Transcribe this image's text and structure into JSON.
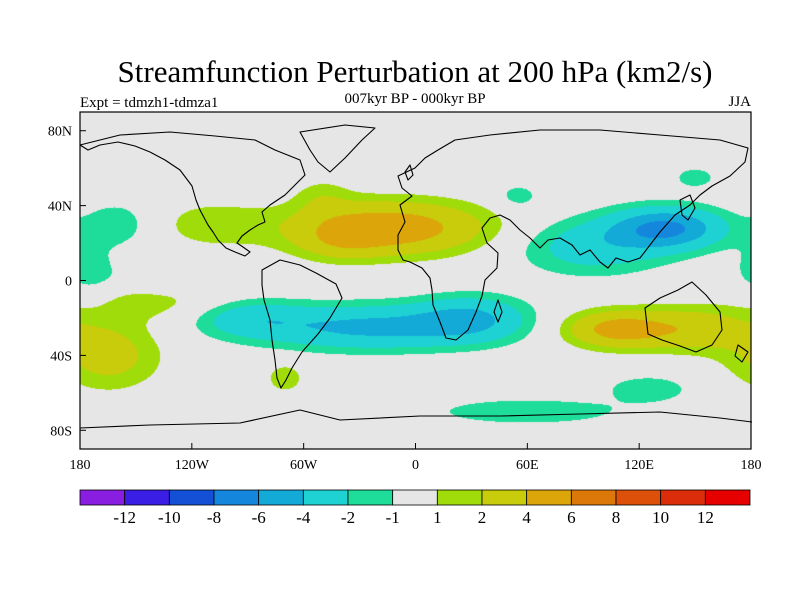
{
  "chart_data": {
    "type": "heatmap",
    "title": "Streamfunction Perturbation at 200 hPa (km2/s)",
    "left_label": "Expt = tdmzh1-tdmza1",
    "center_label": "007kyr BP - 000kyr BP",
    "right_label": "JJA",
    "xlim": [
      -180,
      180
    ],
    "ylim": [
      -90,
      90
    ],
    "x_ticks": [
      {
        "value": -180,
        "label": "180"
      },
      {
        "value": -120,
        "label": "120W"
      },
      {
        "value": -60,
        "label": "60W"
      },
      {
        "value": 0,
        "label": "0"
      },
      {
        "value": 60,
        "label": "60E"
      },
      {
        "value": 120,
        "label": "120E"
      },
      {
        "value": 180,
        "label": "180"
      }
    ],
    "y_ticks": [
      {
        "value": 80,
        "label": "80N"
      },
      {
        "value": 40,
        "label": "40N"
      },
      {
        "value": 0,
        "label": "0"
      },
      {
        "value": -40,
        "label": "40S"
      },
      {
        "value": -80,
        "label": "80S"
      }
    ],
    "colorbar": {
      "levels": [
        -12,
        -10,
        -8,
        -6,
        -4,
        -2,
        -1,
        1,
        2,
        4,
        6,
        8,
        10,
        12
      ],
      "labels": [
        "-12",
        "-10",
        "-8",
        "-6",
        "-4",
        "-2",
        "-1",
        "1",
        "2",
        "4",
        "6",
        "8",
        "10",
        "12"
      ],
      "colors": [
        "#8a1ee0",
        "#3a1ee6",
        "#1450d6",
        "#1487dc",
        "#14aad8",
        "#1ed2d4",
        "#1edc9a",
        "#e6e6e6",
        "#a0dc0a",
        "#c8cc0a",
        "#dca50a",
        "#dc780a",
        "#dc500a",
        "#dc2d0a",
        "#e60000"
      ]
    },
    "features": [
      {
        "lon": -15,
        "lat": 28,
        "rx": 52,
        "ry": 14,
        "a": 5.6
      },
      {
        "lon": -40,
        "lat": 20,
        "rx": 22,
        "ry": 10,
        "a": 1.5
      },
      {
        "lon": -110,
        "lat": 30,
        "rx": 30,
        "ry": 13,
        "a": 1.5
      },
      {
        "lon": 108,
        "lat": -26,
        "rx": 28,
        "ry": 10,
        "a": 4.8
      },
      {
        "lon": 150,
        "lat": -26,
        "rx": 30,
        "ry": 12,
        "a": 3.0
      },
      {
        "lon": -165,
        "lat": -40,
        "rx": 28,
        "ry": 18,
        "a": 2.8
      },
      {
        "lon": -140,
        "lat": -10,
        "rx": 40,
        "ry": 12,
        "a": 1.6
      },
      {
        "lon": -70,
        "lat": -52,
        "rx": 10,
        "ry": 8,
        "a": 1.8
      },
      {
        "lon": 135,
        "lat": 28,
        "rx": 30,
        "ry": 11,
        "a": -6.2
      },
      {
        "lon": 95,
        "lat": 18,
        "rx": 40,
        "ry": 15,
        "a": -3.0
      },
      {
        "lon": -25,
        "lat": -25,
        "rx": 60,
        "ry": 12,
        "a": -4.5
      },
      {
        "lon": 30,
        "lat": -20,
        "rx": 30,
        "ry": 12,
        "a": -3.5
      },
      {
        "lon": -90,
        "lat": -20,
        "rx": 30,
        "ry": 10,
        "a": -2.6
      },
      {
        "lon": 60,
        "lat": -70,
        "rx": 50,
        "ry": 7,
        "a": -2.0
      },
      {
        "lon": 125,
        "lat": -58,
        "rx": 25,
        "ry": 8,
        "a": -1.7
      },
      {
        "lon": -160,
        "lat": 30,
        "rx": 18,
        "ry": 12,
        "a": -1.8
      },
      {
        "lon": -175,
        "lat": 5,
        "rx": 15,
        "ry": 15,
        "a": -1.6
      },
      {
        "lon": 55,
        "lat": 45,
        "rx": 12,
        "ry": 7,
        "a": -1.6
      },
      {
        "lon": 150,
        "lat": 55,
        "rx": 12,
        "ry": 6,
        "a": -1.6
      },
      {
        "lon": -130,
        "lat": 0,
        "rx": 35,
        "ry": 8,
        "a": -1.4
      },
      {
        "lon": -50,
        "lat": 45,
        "rx": 15,
        "ry": 10,
        "a": 1.2
      }
    ]
  }
}
